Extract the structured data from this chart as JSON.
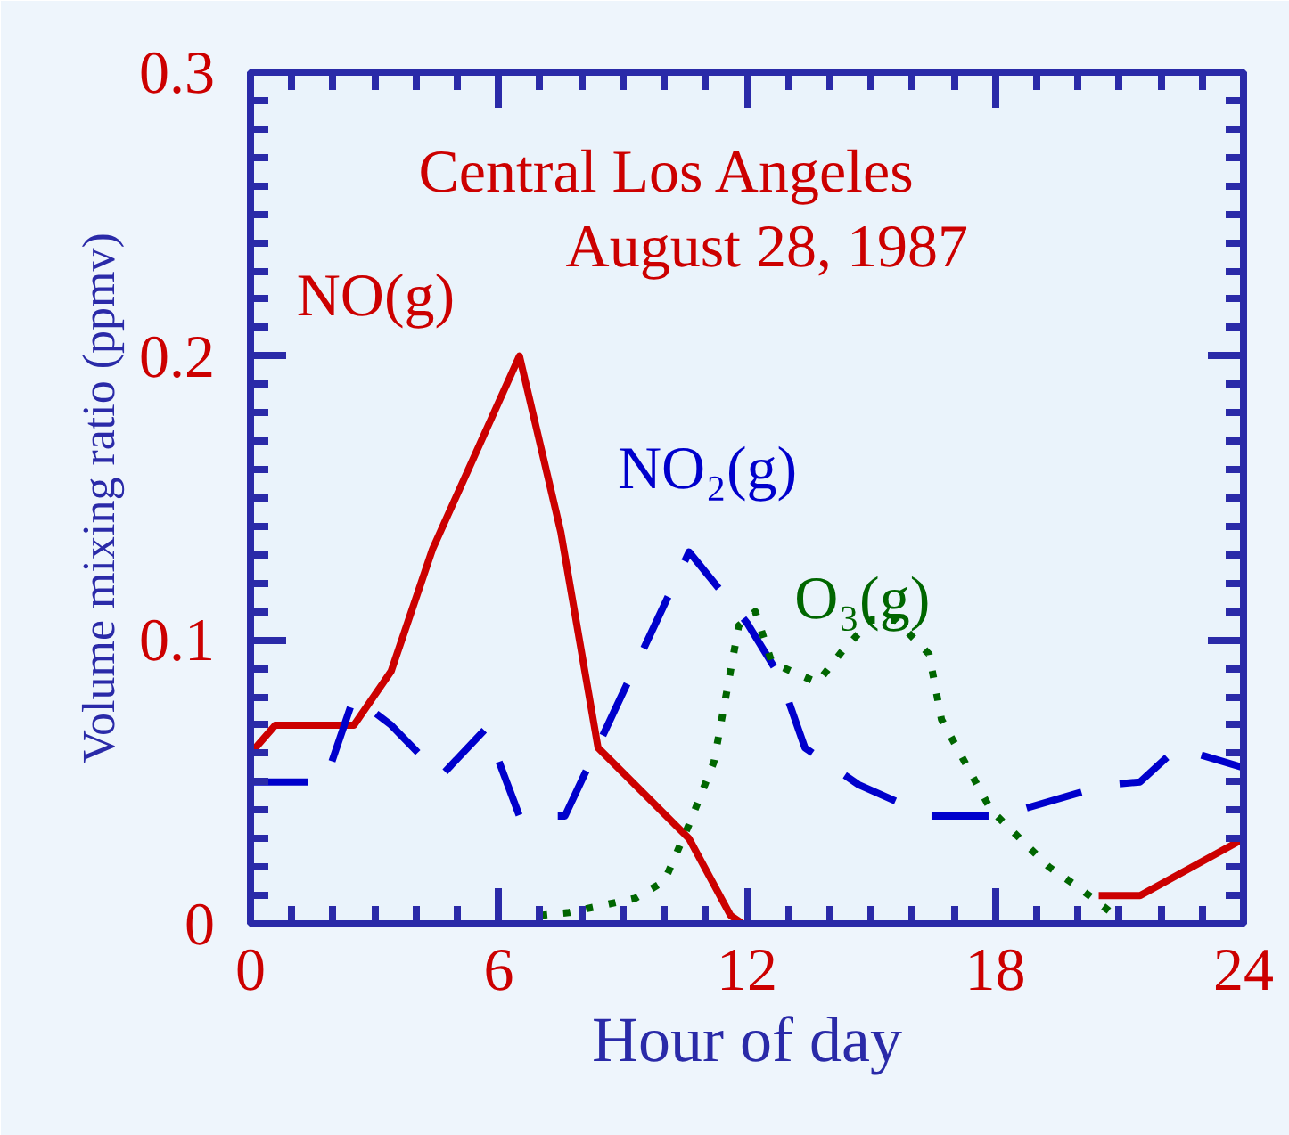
{
  "chart_data": {
    "type": "line",
    "xlabel": "Hour of day",
    "ylabel": "Volume mixing ratio (ppmv)",
    "annotations": [
      "Central Los Angeles",
      "August 28, 1987"
    ],
    "xlim": [
      0,
      24
    ],
    "ylim": [
      0,
      0.3
    ],
    "xticks": [
      0,
      6,
      12,
      18,
      24
    ],
    "yticks": [
      0,
      0.1,
      0.2,
      0.3
    ],
    "grid": false,
    "legend": false,
    "series": [
      {
        "name": "NO(g)",
        "color": "#cc0000",
        "line_style": "solid",
        "x": [
          0,
          0.6,
          2.5,
          3.4,
          4.4,
          6.5,
          7.5,
          8.4,
          10.6,
          11.6,
          11.9,
          20,
          20.5,
          21.5,
          24
        ],
        "values": [
          0.06,
          0.07,
          0.07,
          0.089,
          0.132,
          0.2,
          0.138,
          0.062,
          0.03,
          0.003,
          0,
          null,
          0.01,
          0.01,
          0.03
        ]
      },
      {
        "name": "NO₂(g)",
        "color": "#0000cc",
        "line_style": "dashed",
        "x": [
          0,
          1.8,
          2.5,
          3.4,
          4.6,
          5.7,
          6.5,
          7.6,
          10.6,
          12,
          12.8,
          13.4,
          14.7,
          16.4,
          18.1,
          20.7,
          21.5,
          22.4,
          24
        ],
        "values": [
          0.05,
          0.05,
          0.08,
          0.07,
          0.052,
          0.069,
          0.038,
          0.038,
          0.131,
          0.106,
          0.087,
          0.062,
          0.049,
          0.038,
          0.038,
          0.049,
          0.05,
          0.062,
          0.055
        ]
      },
      {
        "name": "O₃(g)",
        "color": "#006600",
        "line_style": "dotted",
        "x": [
          7,
          7.7,
          9.3,
          10,
          10.6,
          11.2,
          11.8,
          12.2,
          12.6,
          13.7,
          14.3,
          15,
          15.6,
          16.4,
          16.7,
          17.9,
          19.3,
          20,
          20.8
        ],
        "values": [
          0.003,
          0.004,
          0.009,
          0.015,
          0.035,
          0.057,
          0.105,
          0.11,
          0.092,
          0.085,
          0.096,
          0.107,
          0.107,
          0.095,
          0.072,
          0.04,
          0.02,
          0.013,
          0.004
        ]
      }
    ]
  }
}
